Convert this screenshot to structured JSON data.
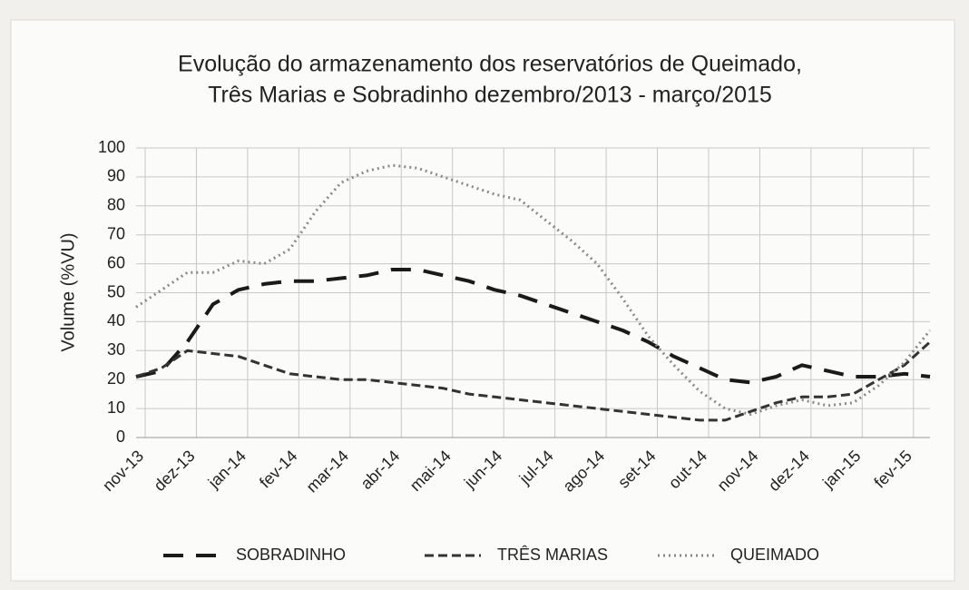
{
  "chart_data": {
    "type": "line",
    "title": [
      "Evolução do armazenamento dos reservatórios de Queimado,",
      "Três Marias e Sobradinho dezembro/2013 - março/2015"
    ],
    "y_label": "Volume (%VU)",
    "categories": [
      "nov-13",
      null,
      "dez-13",
      null,
      "jan-14",
      null,
      "fev-14",
      null,
      "mar-14",
      null,
      "abr-14",
      null,
      "mai-14",
      null,
      "jun-14",
      null,
      "jul-14",
      null,
      "ago-14",
      null,
      "set-14",
      null,
      "out-14",
      null,
      "nov-14",
      null,
      "dez-14",
      null,
      "jan-15",
      null,
      "fev-15",
      null
    ],
    "series": [
      {
        "name": "SOBRADINHO",
        "color": "#1a1a1a",
        "dash": "long",
        "values": [
          21,
          23,
          33,
          46,
          51,
          53,
          54,
          54,
          55,
          56,
          58,
          58,
          56,
          54,
          51,
          49,
          46,
          43,
          40,
          37,
          33,
          28,
          24,
          20,
          19,
          21,
          25,
          23,
          21,
          21,
          22,
          21
        ]
      },
      {
        "name": "TRÊS MARIAS",
        "color": "#333333",
        "dash": "short",
        "values": [
          21,
          24,
          30,
          29,
          28,
          25,
          22,
          21,
          20,
          20,
          19,
          18,
          17,
          15,
          14,
          13,
          12,
          11,
          10,
          9,
          8,
          7,
          6,
          6,
          9,
          12,
          14,
          14,
          15,
          20,
          25,
          33
        ]
      },
      {
        "name": "QUEIMADO",
        "color": "#8a8a8a",
        "dash": "dot",
        "values": [
          45,
          51,
          57,
          57,
          61,
          60,
          65,
          78,
          88,
          92,
          94,
          93,
          90,
          87,
          84,
          82,
          75,
          68,
          60,
          48,
          35,
          25,
          16,
          10,
          8,
          11,
          13,
          11,
          12,
          18,
          26,
          37
        ]
      }
    ],
    "ylim": [
      0,
      100
    ],
    "yticks": [
      0,
      10,
      20,
      30,
      40,
      50,
      60,
      70,
      80,
      90,
      100
    ],
    "grid": true,
    "legend": "bottom"
  }
}
